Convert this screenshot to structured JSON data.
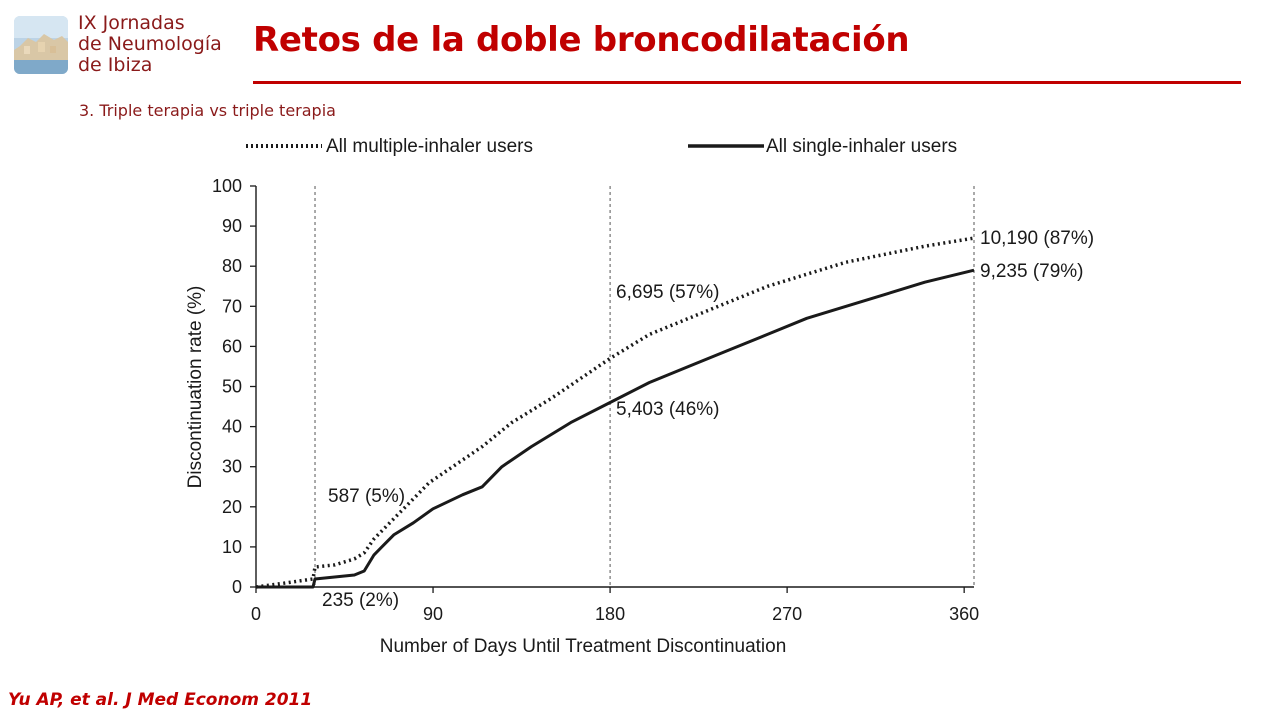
{
  "header": {
    "logo_lines": [
      "IX Jornadas",
      "de Neumología",
      "de Ibiza"
    ],
    "title": "Retos de la doble broncodilatación",
    "subtitle": "3. Triple terapia vs triple terapia"
  },
  "footer": {
    "citation": "Yu AP, et al. J Med Econom 2011"
  },
  "colors": {
    "accent": "#c00000",
    "logo_text": "#8a1a1a",
    "line": "#1a1a1a"
  },
  "chart_data": {
    "type": "line",
    "title": "",
    "xlabel": "Number of Days Until Treatment Discontinuation",
    "ylabel": "Discontinuation rate (%)",
    "xlim": [
      0,
      365
    ],
    "ylim": [
      0,
      100
    ],
    "x_ticks": [
      0,
      90,
      180,
      270,
      360
    ],
    "y_ticks": [
      0,
      10,
      20,
      30,
      40,
      50,
      60,
      70,
      80,
      90,
      100
    ],
    "grid": false,
    "legend": "top",
    "reference_lines_x": [
      30,
      180,
      365
    ],
    "series": [
      {
        "name": "All multiple-inhaler users",
        "style": "dotted",
        "points": [
          [
            0,
            0
          ],
          [
            15,
            1
          ],
          [
            29,
            2
          ],
          [
            30,
            5
          ],
          [
            40,
            5.5
          ],
          [
            50,
            7
          ],
          [
            55,
            8.5
          ],
          [
            60,
            12
          ],
          [
            70,
            17
          ],
          [
            80,
            22
          ],
          [
            88,
            26
          ],
          [
            100,
            30
          ],
          [
            115,
            35
          ],
          [
            130,
            41
          ],
          [
            150,
            47
          ],
          [
            165,
            52
          ],
          [
            180,
            57
          ],
          [
            200,
            63
          ],
          [
            220,
            67
          ],
          [
            240,
            71
          ],
          [
            260,
            75
          ],
          [
            280,
            78
          ],
          [
            300,
            81
          ],
          [
            320,
            83
          ],
          [
            340,
            85
          ],
          [
            365,
            87
          ]
        ]
      },
      {
        "name": "All single-inhaler users",
        "style": "solid",
        "points": [
          [
            0,
            0
          ],
          [
            29,
            0
          ],
          [
            30,
            2
          ],
          [
            40,
            2.5
          ],
          [
            50,
            3
          ],
          [
            55,
            4
          ],
          [
            60,
            8
          ],
          [
            70,
            13
          ],
          [
            80,
            16
          ],
          [
            90,
            19.5
          ],
          [
            105,
            23
          ],
          [
            115,
            25
          ],
          [
            125,
            30
          ],
          [
            140,
            35
          ],
          [
            160,
            41
          ],
          [
            180,
            46
          ],
          [
            200,
            51
          ],
          [
            220,
            55
          ],
          [
            240,
            59
          ],
          [
            260,
            63
          ],
          [
            280,
            67
          ],
          [
            300,
            70
          ],
          [
            320,
            73
          ],
          [
            340,
            76
          ],
          [
            365,
            79
          ]
        ]
      }
    ],
    "annotations": [
      {
        "text": "587 (5%)"
      },
      {
        "text": "235 (2%)"
      },
      {
        "text": "6,695 (57%)"
      },
      {
        "text": "5,403 (46%)"
      },
      {
        "text": "10,190 (87%)"
      },
      {
        "text": "9,235 (79%)"
      }
    ]
  }
}
